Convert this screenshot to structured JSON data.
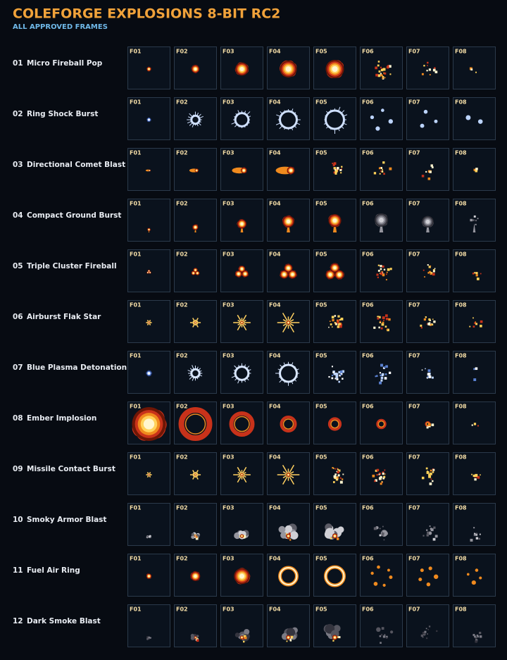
{
  "header": {
    "title": "COLEFORGE EXPLOSIONS 8-BIT RC2",
    "subtitle": "ALL APPROVED FRAMES"
  },
  "frame_labels": [
    "F01",
    "F02",
    "F03",
    "F04",
    "F05",
    "F06",
    "F07",
    "F08"
  ],
  "rows": [
    {
      "number": "01",
      "name": "Micro Fireball Pop"
    },
    {
      "number": "02",
      "name": "Ring Shock Burst"
    },
    {
      "number": "03",
      "name": "Directional Comet Blast"
    },
    {
      "number": "04",
      "name": "Compact Ground Burst"
    },
    {
      "number": "05",
      "name": "Triple Cluster Fireball"
    },
    {
      "number": "06",
      "name": "Airburst Flak Star"
    },
    {
      "number": "07",
      "name": "Blue Plasma Detonation"
    },
    {
      "number": "08",
      "name": "Ember Implosion"
    },
    {
      "number": "09",
      "name": "Missile Contact Burst"
    },
    {
      "number": "10",
      "name": "Smoky Armor Blast"
    },
    {
      "number": "11",
      "name": "Fuel Air Ring"
    },
    {
      "number": "12",
      "name": "Dark Smoke Blast"
    }
  ]
}
